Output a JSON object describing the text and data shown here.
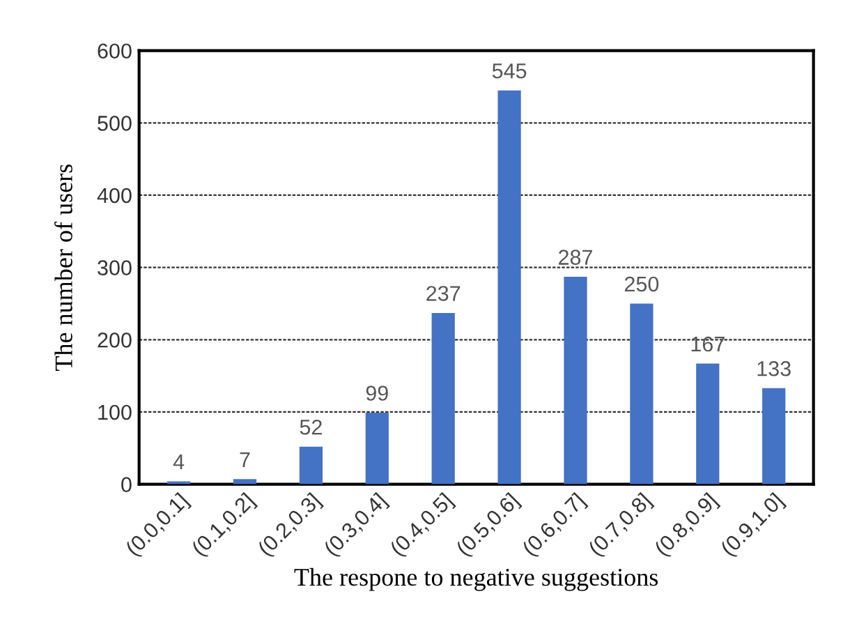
{
  "chart_data": {
    "type": "bar",
    "xlabel": "The respone to negative suggestions",
    "ylabel": "The number of users",
    "categories": [
      "(0.0,0.1]",
      "(0.1,0.2]",
      "(0.2,0.3]",
      "(0.3,0.4]",
      "(0.4,0.5]",
      "(0.5,0.6]",
      "(0.6,0.7]",
      "(0.7,0.8]",
      "(0.8,0.9]",
      "(0.9,1.0]"
    ],
    "values": [
      4,
      7,
      52,
      99,
      237,
      545,
      287,
      250,
      167,
      133
    ],
    "color": "#4472c4",
    "ylim": [
      0,
      600
    ],
    "yticks": [
      0,
      100,
      200,
      300,
      400,
      500,
      600
    ],
    "grid": "y",
    "data_labels": true
  }
}
